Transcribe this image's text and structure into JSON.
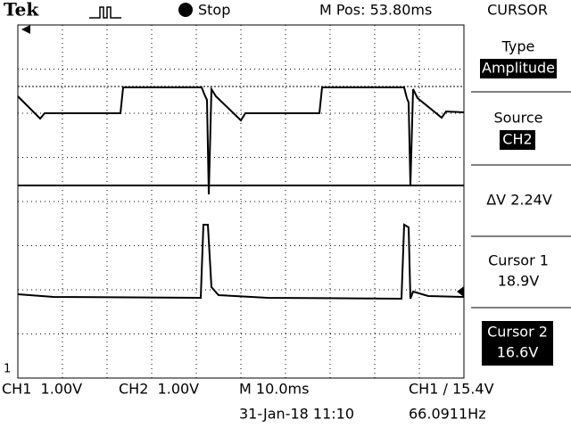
{
  "header": {
    "brand": "Tek",
    "status": "Stop",
    "position": "M Pos: 53.80ms"
  },
  "menu": {
    "title": "CURSOR",
    "items": [
      {
        "label": "Type",
        "value": "Amplitude"
      },
      {
        "label": "Source",
        "value": "CH2"
      },
      {
        "label": "ΔV 2.24V"
      },
      {
        "label": "Cursor 1",
        "value": "18.9V"
      },
      {
        "label": "Cursor 2",
        "value": "16.6V"
      }
    ]
  },
  "footer": {
    "ch1": "CH1  1.00V",
    "ch2": "CH2  1.00V",
    "timebase": "M 10.0ms",
    "trigger": "CH1 / 15.4V",
    "date": "31-Jan-18 11:10",
    "frequency": "66.0911Hz"
  }
}
